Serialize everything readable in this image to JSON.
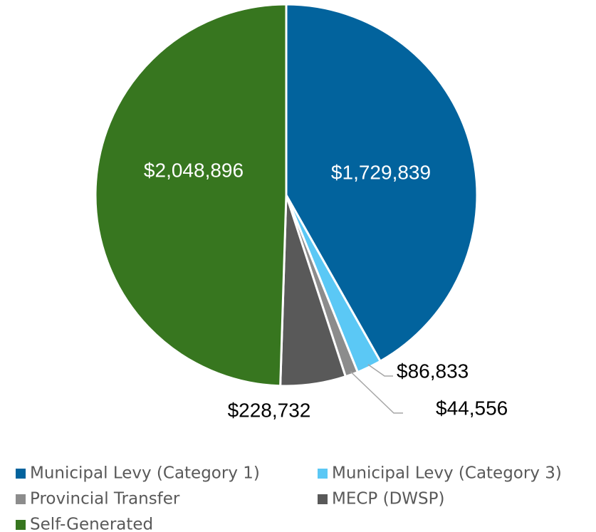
{
  "chart_data": {
    "type": "pie",
    "categories": [
      "Municipal Levy (Category 1)",
      "Municipal Levy (Category 3)",
      "Provincial Transfer",
      "MECP (DWSP)",
      "Self-Generated"
    ],
    "values": [
      1729839,
      86833,
      44556,
      228732,
      2048896
    ],
    "value_labels": [
      "$1,729,839",
      "$86,833",
      "$44,556",
      "$228,732",
      "$2,048,896"
    ],
    "colors": [
      "#02639d",
      "#5bc8f5",
      "#8c8c8c",
      "#595959",
      "#37761f"
    ],
    "legend": "bottom"
  }
}
